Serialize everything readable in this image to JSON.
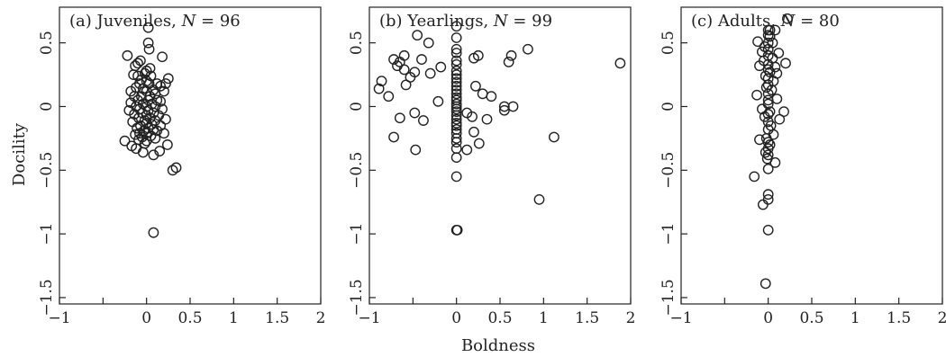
{
  "figure": {
    "xlabel": "Boldness",
    "ylabel": "Docility"
  },
  "chart_data": [
    {
      "type": "scatter",
      "title_prefix": "(a) Juveniles, ",
      "title_n_symbol": "N",
      "title_n_suffix": " = 96",
      "xlim": [
        -1,
        2
      ],
      "ylim": [
        -1.55,
        0.78
      ],
      "xticks": [
        -1,
        -0.5,
        0,
        0.5,
        1,
        1.5,
        2
      ],
      "xtick_labels": [
        "−1",
        "",
        "0",
        "0.5",
        "1",
        "1.5",
        "2"
      ],
      "yticks": [
        0.5,
        0,
        -0.5,
        -1,
        -1.5
      ],
      "ytick_labels": [
        "0.5",
        "0",
        "−0.5",
        "−1",
        "−1.5"
      ],
      "points": [
        [
          0.02,
          0.62
        ],
        [
          0.02,
          0.5
        ],
        [
          0.03,
          0.45
        ],
        [
          -0.22,
          0.4
        ],
        [
          0.18,
          0.39
        ],
        [
          -0.07,
          0.36
        ],
        [
          -0.1,
          0.34
        ],
        [
          -0.13,
          0.32
        ],
        [
          0.04,
          0.3
        ],
        [
          0.0,
          0.28
        ],
        [
          -0.02,
          0.26
        ],
        [
          -0.15,
          0.25
        ],
        [
          -0.1,
          0.24
        ],
        [
          0.05,
          0.24
        ],
        [
          0.25,
          0.22
        ],
        [
          -0.06,
          0.21
        ],
        [
          0.0,
          0.2
        ],
        [
          0.22,
          0.18
        ],
        [
          -0.08,
          0.18
        ],
        [
          0.03,
          0.18
        ],
        [
          0.12,
          0.18
        ],
        [
          0.16,
          0.16
        ],
        [
          -0.12,
          0.15
        ],
        [
          -0.04,
          0.14
        ],
        [
          0.08,
          0.13
        ],
        [
          -0.18,
          0.12
        ],
        [
          0.0,
          0.12
        ],
        [
          0.2,
          0.12
        ],
        [
          0.1,
          0.1
        ],
        [
          -0.14,
          0.08
        ],
        [
          -0.06,
          0.08
        ],
        [
          0.04,
          0.08
        ],
        [
          -0.1,
          0.05
        ],
        [
          0.02,
          0.05
        ],
        [
          0.12,
          0.05
        ],
        [
          0.16,
          0.04
        ],
        [
          -0.18,
          0.03
        ],
        [
          -0.04,
          0.02
        ],
        [
          0.06,
          0.02
        ],
        [
          0.0,
          0.0
        ],
        [
          -0.12,
          0.0
        ],
        [
          0.1,
          0.0
        ],
        [
          -0.08,
          -0.02
        ],
        [
          0.18,
          -0.02
        ],
        [
          -0.2,
          -0.03
        ],
        [
          0.02,
          -0.03
        ],
        [
          -0.05,
          -0.05
        ],
        [
          0.08,
          -0.05
        ],
        [
          -0.14,
          -0.06
        ],
        [
          0.0,
          -0.07
        ],
        [
          0.14,
          -0.07
        ],
        [
          -0.09,
          -0.09
        ],
        [
          0.04,
          -0.09
        ],
        [
          0.22,
          -0.1
        ],
        [
          -0.02,
          -0.11
        ],
        [
          0.1,
          -0.11
        ],
        [
          -0.16,
          -0.12
        ],
        [
          0.0,
          -0.13
        ],
        [
          0.06,
          -0.14
        ],
        [
          -0.07,
          -0.15
        ],
        [
          0.16,
          -0.15
        ],
        [
          -0.11,
          -0.17
        ],
        [
          0.02,
          -0.17
        ],
        [
          0.08,
          -0.18
        ],
        [
          -0.03,
          -0.19
        ],
        [
          0.12,
          -0.19
        ],
        [
          -0.08,
          -0.21
        ],
        [
          0.0,
          -0.21
        ],
        [
          0.2,
          -0.21
        ],
        [
          -0.13,
          -0.22
        ],
        [
          0.05,
          -0.23
        ],
        [
          -0.05,
          -0.24
        ],
        [
          0.1,
          -0.25
        ],
        [
          -0.09,
          -0.26
        ],
        [
          -0.25,
          -0.27
        ],
        [
          0.0,
          -0.27
        ],
        [
          -0.02,
          -0.29
        ],
        [
          0.24,
          -0.3
        ],
        [
          -0.17,
          -0.31
        ],
        [
          -0.12,
          -0.33
        ],
        [
          0.15,
          -0.35
        ],
        [
          -0.04,
          -0.36
        ],
        [
          0.08,
          -0.38
        ],
        [
          0.3,
          -0.5
        ],
        [
          0.34,
          -0.48
        ],
        [
          0.08,
          -0.99
        ]
      ]
    },
    {
      "type": "scatter",
      "title_prefix": "(b) Yearlings, ",
      "title_n_symbol": "N",
      "title_n_suffix": " = 99",
      "xlim": [
        -1,
        2
      ],
      "ylim": [
        -1.55,
        0.78
      ],
      "xticks": [
        -1,
        -0.5,
        0,
        0.5,
        1,
        1.5,
        2
      ],
      "xtick_labels": [
        "−1",
        "",
        "0",
        "0.5",
        "1",
        "1.5",
        "2"
      ],
      "yticks": [
        0.5,
        0,
        -0.5,
        -1,
        -1.5
      ],
      "ytick_labels": [
        "0.5",
        "0",
        "−0.5",
        "−1",
        "−1.5"
      ],
      "points": [
        [
          0.0,
          0.63
        ],
        [
          0.0,
          0.54
        ],
        [
          -0.45,
          0.56
        ],
        [
          -0.32,
          0.5
        ],
        [
          0.82,
          0.45
        ],
        [
          0.0,
          0.45
        ],
        [
          0.0,
          0.42
        ],
        [
          -0.6,
          0.4
        ],
        [
          0.25,
          0.4
        ],
        [
          0.63,
          0.4
        ],
        [
          -0.72,
          0.37
        ],
        [
          -0.4,
          0.37
        ],
        [
          0.2,
          0.38
        ],
        [
          -0.65,
          0.35
        ],
        [
          0.6,
          0.35
        ],
        [
          1.88,
          0.34
        ],
        [
          0.0,
          0.36
        ],
        [
          -0.68,
          0.32
        ],
        [
          -0.18,
          0.31
        ],
        [
          0.0,
          0.33
        ],
        [
          -0.6,
          0.29
        ],
        [
          -0.48,
          0.27
        ],
        [
          -0.3,
          0.26
        ],
        [
          0.0,
          0.28
        ],
        [
          0.0,
          0.25
        ],
        [
          -0.53,
          0.23
        ],
        [
          -0.86,
          0.2
        ],
        [
          0.0,
          0.22
        ],
        [
          0.0,
          0.19
        ],
        [
          -0.58,
          0.17
        ],
        [
          0.0,
          0.16
        ],
        [
          0.22,
          0.16
        ],
        [
          -0.89,
          0.14
        ],
        [
          0.0,
          0.13
        ],
        [
          0.3,
          0.1
        ],
        [
          0.0,
          0.1
        ],
        [
          -0.78,
          0.08
        ],
        [
          0.4,
          0.08
        ],
        [
          0.0,
          0.07
        ],
        [
          0.0,
          0.05
        ],
        [
          -0.21,
          0.04
        ],
        [
          0.0,
          0.02
        ],
        [
          0.0,
          0.0
        ],
        [
          0.55,
          0.0
        ],
        [
          0.65,
          0.0
        ],
        [
          0.0,
          -0.02
        ],
        [
          0.55,
          -0.03
        ],
        [
          0.0,
          -0.04
        ],
        [
          -0.48,
          -0.05
        ],
        [
          0.12,
          -0.05
        ],
        [
          0.0,
          -0.07
        ],
        [
          0.18,
          -0.08
        ],
        [
          -0.65,
          -0.09
        ],
        [
          0.0,
          -0.1
        ],
        [
          0.35,
          -0.1
        ],
        [
          -0.38,
          -0.11
        ],
        [
          0.0,
          -0.13
        ],
        [
          0.0,
          -0.15
        ],
        [
          0.0,
          -0.18
        ],
        [
          0.2,
          -0.2
        ],
        [
          0.0,
          -0.21
        ],
        [
          -0.72,
          -0.24
        ],
        [
          1.12,
          -0.24
        ],
        [
          0.0,
          -0.25
        ],
        [
          0.0,
          -0.28
        ],
        [
          0.26,
          -0.29
        ],
        [
          -0.47,
          -0.34
        ],
        [
          0.12,
          -0.34
        ],
        [
          0.0,
          -0.33
        ],
        [
          0.0,
          -0.4
        ],
        [
          0.0,
          -0.55
        ],
        [
          0.95,
          -0.73
        ],
        [
          0.0,
          -0.97
        ],
        [
          0.01,
          -0.97
        ]
      ]
    },
    {
      "type": "scatter",
      "title_prefix": "(c) Adults, ",
      "title_n_symbol": "N",
      "title_n_suffix": " = 80",
      "xlim": [
        -1,
        2
      ],
      "ylim": [
        -1.55,
        0.78
      ],
      "xticks": [
        -1,
        -0.5,
        0,
        0.5,
        1,
        1.5,
        2
      ],
      "xtick_labels": [
        "−1",
        "",
        "0",
        "0.5",
        "1",
        "1.5",
        "2"
      ],
      "yticks": [
        0.5,
        0,
        -0.5,
        -1,
        -1.5
      ],
      "ytick_labels": [
        "0.5",
        "0",
        "−0.5",
        "−1",
        "−1.5"
      ],
      "points": [
        [
          0.22,
          0.69
        ],
        [
          0.0,
          0.6
        ],
        [
          0.02,
          0.6
        ],
        [
          0.08,
          0.6
        ],
        [
          0.0,
          0.56
        ],
        [
          0.02,
          0.55
        ],
        [
          -0.12,
          0.51
        ],
        [
          0.0,
          0.5
        ],
        [
          0.05,
          0.5
        ],
        [
          -0.04,
          0.47
        ],
        [
          0.0,
          0.45
        ],
        [
          -0.07,
          0.43
        ],
        [
          0.12,
          0.42
        ],
        [
          0.0,
          0.4
        ],
        [
          0.05,
          0.38
        ],
        [
          -0.05,
          0.36
        ],
        [
          0.2,
          0.34
        ],
        [
          0.0,
          0.33
        ],
        [
          -0.1,
          0.32
        ],
        [
          0.08,
          0.31
        ],
        [
          0.0,
          0.29
        ],
        [
          0.02,
          0.27
        ],
        [
          0.1,
          0.26
        ],
        [
          -0.03,
          0.24
        ],
        [
          0.0,
          0.22
        ],
        [
          0.06,
          0.2
        ],
        [
          0.0,
          0.17
        ],
        [
          -0.02,
          0.15
        ],
        [
          0.04,
          0.13
        ],
        [
          0.0,
          0.1
        ],
        [
          -0.13,
          0.09
        ],
        [
          0.1,
          0.06
        ],
        [
          0.0,
          0.05
        ],
        [
          0.0,
          0.02
        ],
        [
          -0.07,
          -0.02
        ],
        [
          0.02,
          -0.04
        ],
        [
          0.18,
          -0.04
        ],
        [
          0.0,
          -0.06
        ],
        [
          -0.04,
          -0.08
        ],
        [
          0.13,
          -0.1
        ],
        [
          0.0,
          -0.12
        ],
        [
          0.03,
          -0.15
        ],
        [
          0.0,
          -0.18
        ],
        [
          0.06,
          -0.22
        ],
        [
          -0.02,
          -0.25
        ],
        [
          -0.1,
          -0.26
        ],
        [
          0.0,
          -0.28
        ],
        [
          0.02,
          -0.3
        ],
        [
          0.0,
          -0.33
        ],
        [
          -0.03,
          -0.36
        ],
        [
          0.0,
          -0.38
        ],
        [
          -0.01,
          -0.41
        ],
        [
          0.08,
          -0.44
        ],
        [
          0.0,
          -0.49
        ],
        [
          -0.16,
          -0.55
        ],
        [
          0.0,
          -0.69
        ],
        [
          0.0,
          -0.73
        ],
        [
          -0.06,
          -0.77
        ],
        [
          0.0,
          -0.97
        ],
        [
          -0.03,
          -1.39
        ]
      ]
    }
  ]
}
